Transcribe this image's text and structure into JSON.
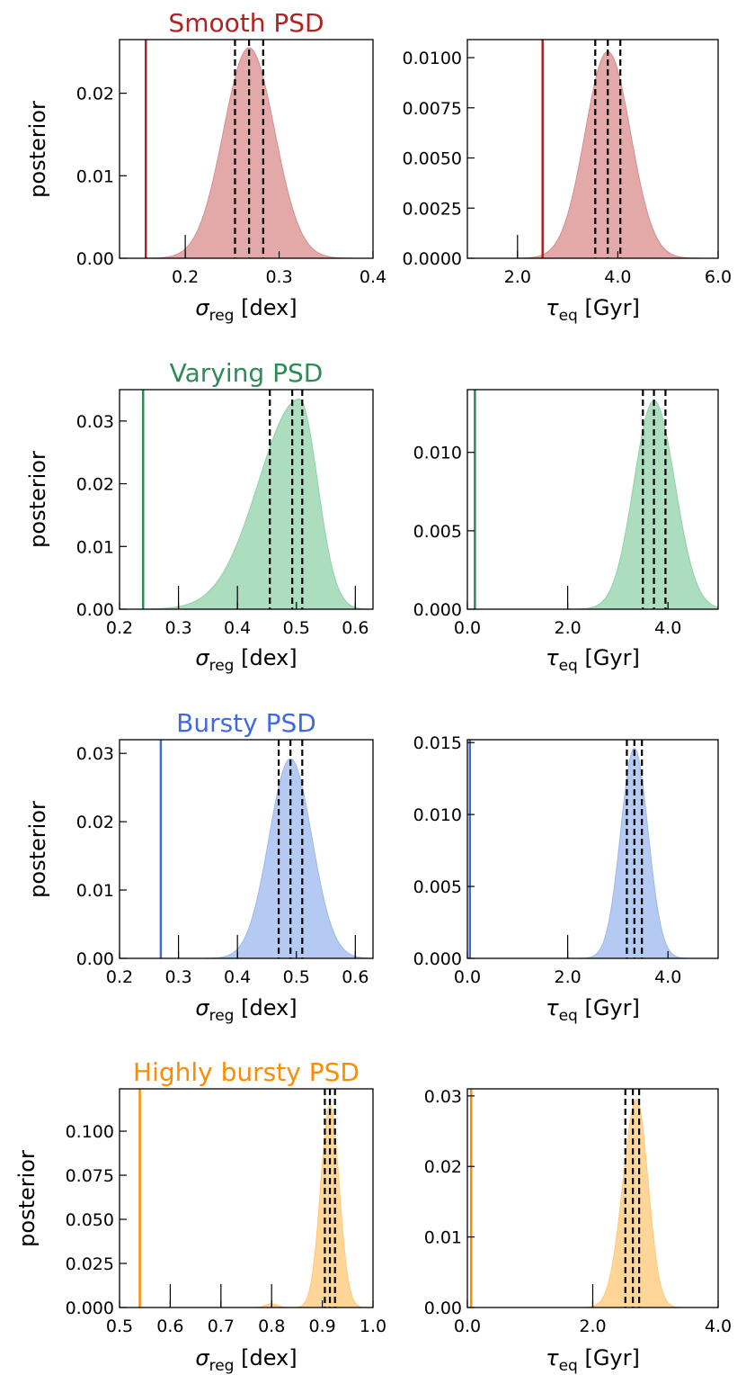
{
  "chart_data": [
    {
      "type": "area",
      "panel": "smooth-sigma",
      "title": "Smooth PSD",
      "ylabel": "posterior",
      "xlabel": "σ_reg [dex]",
      "xlim": [
        0.13,
        0.4
      ],
      "ylim": [
        0,
        0.0265
      ],
      "xticks": [
        0.2,
        0.3,
        0.4
      ],
      "xtick_labels": [
        "0.2",
        "0.3",
        "0.4"
      ],
      "yticks": [
        0,
        0.01,
        0.02
      ],
      "ytick_labels": [
        "0.00",
        "0.01",
        "0.02"
      ],
      "color": "#b22222",
      "fill": "#d98c8c",
      "truth": 0.158,
      "quantiles": [
        0.253,
        0.268,
        0.283
      ],
      "peak": {
        "x": 0.268,
        "y": 0.0255
      }
    },
    {
      "type": "area",
      "panel": "smooth-tau",
      "xlabel": "τ_eq [Gyr]",
      "xlim": [
        1.0,
        6.0
      ],
      "ylim": [
        0,
        0.0109
      ],
      "xticks": [
        2.0,
        4.0,
        6.0
      ],
      "xtick_labels": [
        "2.0",
        "4.0",
        "6.0"
      ],
      "yticks": [
        0,
        0.0025,
        0.005,
        0.0075,
        0.01
      ],
      "ytick_labels": [
        "0.0000",
        "0.0025",
        "0.0050",
        "0.0075",
        "0.0100"
      ],
      "color": "#b22222",
      "fill": "#d98c8c",
      "truth": 2.5,
      "quantiles": [
        3.55,
        3.8,
        4.05
      ],
      "peak": {
        "x": 3.8,
        "y": 0.0103
      }
    },
    {
      "type": "area",
      "panel": "varying-sigma",
      "title": "Varying PSD",
      "ylabel": "posterior",
      "xlabel": "σ_reg [dex]",
      "xlim": [
        0.2,
        0.63
      ],
      "ylim": [
        0,
        0.035
      ],
      "xticks": [
        0.2,
        0.3,
        0.4,
        0.5,
        0.6
      ],
      "xtick_labels": [
        "0.2",
        "0.3",
        "0.4",
        "0.5",
        "0.6"
      ],
      "yticks": [
        0,
        0.01,
        0.02,
        0.03
      ],
      "ytick_labels": [
        "0.00",
        "0.01",
        "0.02",
        "0.03"
      ],
      "color": "#2e8b57",
      "fill": "#8fd1a8",
      "truth": 0.24,
      "quantiles": [
        0.455,
        0.493,
        0.51
      ],
      "peak": {
        "x": 0.505,
        "y": 0.0335
      }
    },
    {
      "type": "area",
      "panel": "varying-tau",
      "xlabel": "τ_eq [Gyr]",
      "xlim": [
        0,
        5.0
      ],
      "ylim": [
        0,
        0.014
      ],
      "xticks": [
        0,
        2.0,
        4.0
      ],
      "xtick_labels": [
        "0.0",
        "2.0",
        "4.0"
      ],
      "yticks": [
        0,
        0.005,
        0.01
      ],
      "ytick_labels": [
        "0.000",
        "0.005",
        "0.010"
      ],
      "color": "#2e8b57",
      "fill": "#8fd1a8",
      "truth": 0.15,
      "quantiles": [
        3.5,
        3.72,
        3.95
      ],
      "peak": {
        "x": 3.72,
        "y": 0.0133
      }
    },
    {
      "type": "area",
      "panel": "bursty-sigma",
      "title": "Bursty PSD",
      "ylabel": "posterior",
      "xlabel": "σ_reg [dex]",
      "xlim": [
        0.2,
        0.63
      ],
      "ylim": [
        0,
        0.032
      ],
      "xticks": [
        0.2,
        0.3,
        0.4,
        0.5,
        0.6
      ],
      "xtick_labels": [
        "0.2",
        "0.3",
        "0.4",
        "0.5",
        "0.6"
      ],
      "yticks": [
        0,
        0.01,
        0.02,
        0.03
      ],
      "ytick_labels": [
        "0.00",
        "0.01",
        "0.02",
        "0.03"
      ],
      "color": "#4169e1",
      "fill": "#9bb8ee",
      "truth": 0.27,
      "quantiles": [
        0.47,
        0.49,
        0.51
      ],
      "peak": {
        "x": 0.49,
        "y": 0.0292
      }
    },
    {
      "type": "area",
      "panel": "bursty-tau",
      "xlabel": "τ_eq [Gyr]",
      "xlim": [
        0,
        5.0
      ],
      "ylim": [
        0,
        0.0152
      ],
      "xticks": [
        0,
        2.0,
        4.0
      ],
      "xtick_labels": [
        "0.0",
        "2.0",
        "4.0"
      ],
      "yticks": [
        0,
        0.005,
        0.01,
        0.015
      ],
      "ytick_labels": [
        "0.000",
        "0.005",
        "0.010",
        "0.015"
      ],
      "color": "#4169e1",
      "fill": "#9bb8ee",
      "truth": 0.05,
      "quantiles": [
        3.18,
        3.33,
        3.48
      ],
      "peak": {
        "x": 3.33,
        "y": 0.0146
      }
    },
    {
      "type": "area",
      "panel": "highly-sigma",
      "title": "Highly bursty PSD",
      "ylabel": "posterior",
      "xlabel": "σ_reg [dex]",
      "xlim": [
        0.5,
        1.0
      ],
      "ylim": [
        0,
        0.124
      ],
      "xticks": [
        0.5,
        0.6,
        0.7,
        0.8,
        0.9,
        1.0
      ],
      "xtick_labels": [
        "0.5",
        "0.6",
        "0.7",
        "0.8",
        "0.9",
        "1.0"
      ],
      "yticks": [
        0,
        0.025,
        0.05,
        0.075,
        0.1
      ],
      "ytick_labels": [
        "0.000",
        "0.025",
        "0.050",
        "0.075",
        "0.100"
      ],
      "color": "#ff8c00",
      "fill": "#ffc875",
      "truth": 0.54,
      "quantiles": [
        0.905,
        0.915,
        0.925
      ],
      "peak": {
        "x": 0.915,
        "y": 0.115
      }
    },
    {
      "type": "area",
      "panel": "highly-tau",
      "xlabel": "τ_eq [Gyr]",
      "xlim": [
        0,
        4.0
      ],
      "ylim": [
        0,
        0.031
      ],
      "xticks": [
        0,
        2.0,
        4.0
      ],
      "xtick_labels": [
        "0.0",
        "2.0",
        "4.0"
      ],
      "yticks": [
        0,
        0.01,
        0.02,
        0.03
      ],
      "ytick_labels": [
        "0.00",
        "0.01",
        "0.02",
        "0.03"
      ],
      "color": "#ff8c00",
      "fill": "#ffc875",
      "truth": 0.06,
      "quantiles": [
        2.52,
        2.64,
        2.74
      ],
      "peak": {
        "x": 2.7,
        "y": 0.0295
      }
    }
  ]
}
